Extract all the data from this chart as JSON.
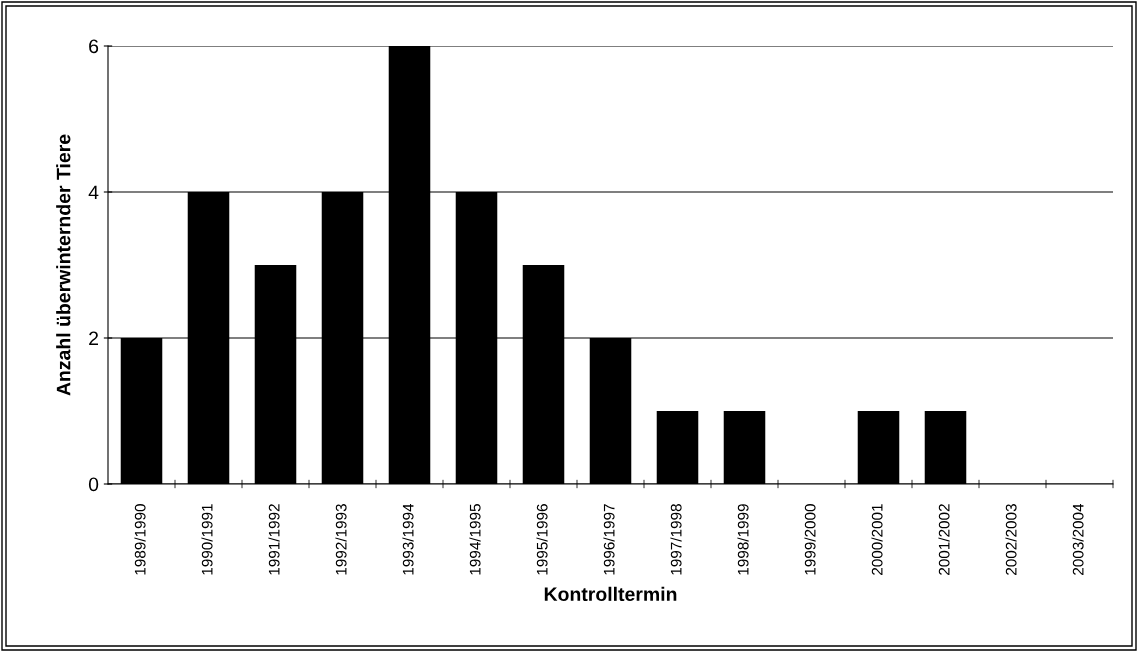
{
  "chart_data": {
    "type": "bar",
    "xlabel": "Kontrolltermin",
    "ylabel": "Anzahl überwinternder Tiere",
    "categories": [
      "1989/1990",
      "1990/1991",
      "1991/1992",
      "1992/1993",
      "1993/1994",
      "1994/1995",
      "1995/1996",
      "1996/1997",
      "1997/1998",
      "1998/1999",
      "1999/2000",
      "2000/2001",
      "2001/2002",
      "2002/2003",
      "2003/2004"
    ],
    "values": [
      2,
      4,
      3,
      4,
      6,
      4,
      3,
      2,
      1,
      1,
      0,
      1,
      1,
      0,
      0
    ],
    "color": "#000000",
    "ylim": [
      0,
      6
    ],
    "yticks": [
      0,
      2,
      4,
      6
    ],
    "grid": "y",
    "legend": false
  }
}
